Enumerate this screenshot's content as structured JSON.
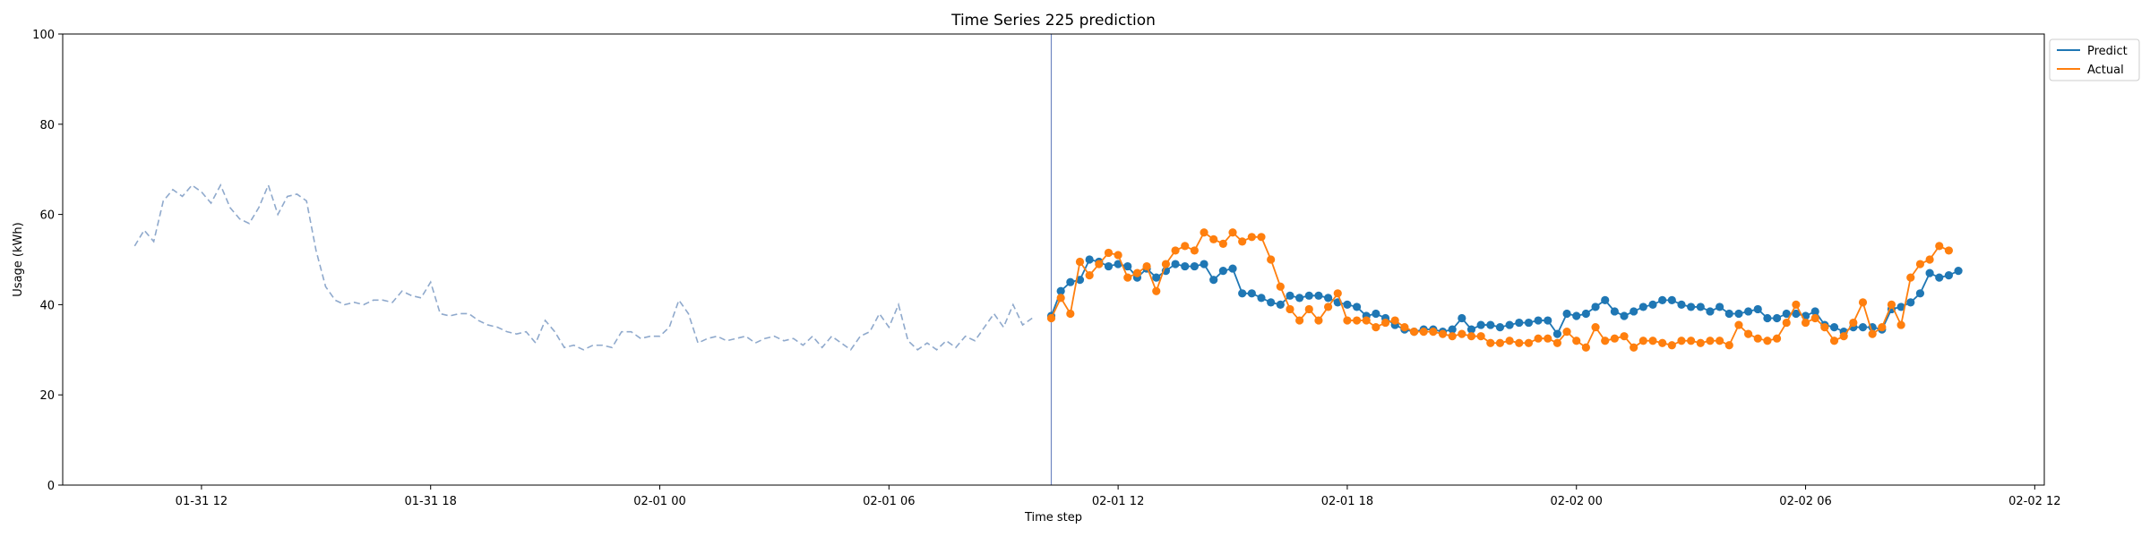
{
  "chart_data": {
    "type": "line",
    "title": "Time Series 225 prediction",
    "xlabel": "Time step",
    "ylabel": "Usage (kWh)",
    "ylim": [
      0,
      100
    ],
    "xlim": [
      "2024-01-31T08:22",
      "2024-02-02T12:15"
    ],
    "x_ticks": [
      {
        "t": "2024-01-31T12:00",
        "label": "01-31 12"
      },
      {
        "t": "2024-01-31T18:00",
        "label": "01-31 18"
      },
      {
        "t": "2024-02-01T00:00",
        "label": "02-01 00"
      },
      {
        "t": "2024-02-01T06:00",
        "label": "02-01 06"
      },
      {
        "t": "2024-02-01T12:00",
        "label": "02-01 12"
      },
      {
        "t": "2024-02-01T18:00",
        "label": "02-01 18"
      },
      {
        "t": "2024-02-02T00:00",
        "label": "02-02 00"
      },
      {
        "t": "2024-02-02T06:00",
        "label": "02-02 06"
      },
      {
        "t": "2024-02-02T12:00",
        "label": "02-02 12"
      }
    ],
    "y_ticks": [
      0,
      20,
      40,
      60,
      80,
      100
    ],
    "forecast_start": "2024-02-01T10:15",
    "grid": false,
    "legend_position": "top-right, outside plot",
    "history": {
      "name": "",
      "color": "#8fa9cc",
      "style": "dashed",
      "start": "2024-01-31T10:15",
      "interval_minutes": 15,
      "values": [
        53,
        56.5,
        54,
        63,
        65.5,
        64,
        66.5,
        65,
        62.5,
        66.5,
        61.5,
        59,
        58,
        61.5,
        66.5,
        60,
        64,
        64.5,
        63,
        52,
        44,
        41,
        40,
        40.5,
        40,
        41,
        41,
        40.5,
        43,
        42,
        41.5,
        45,
        38,
        37.5,
        38,
        38,
        36.5,
        35.5,
        35,
        34,
        33.5,
        34,
        31.5,
        36.5,
        34,
        30.5,
        31,
        30,
        31,
        31,
        30.5,
        34,
        34,
        32.5,
        33,
        33,
        35,
        41,
        38,
        31.5,
        32.5,
        33,
        32,
        32.5,
        33,
        31.5,
        32.5,
        33,
        32,
        32.5,
        31,
        33,
        30.5,
        33,
        31.5,
        30,
        33,
        34,
        38,
        35,
        40,
        32,
        30,
        31.5,
        30,
        32,
        30.5,
        33,
        32,
        35,
        38,
        35,
        40,
        35.5,
        37
      ]
    },
    "series": [
      {
        "name": "Predict",
        "color": "#1f77b4",
        "start": "2024-02-01T10:15",
        "interval_minutes": 15,
        "values": [
          37.5,
          43,
          45,
          45.5,
          50,
          49.5,
          48.5,
          49,
          48.5,
          46,
          48,
          46,
          47.5,
          49,
          48.5,
          48.5,
          49,
          45.5,
          47.5,
          48,
          42.5,
          42.5,
          41.5,
          40.5,
          40,
          42,
          41.5,
          42,
          42,
          41.5,
          40.5,
          40,
          39.5,
          37.5,
          38,
          37,
          35.5,
          34.5,
          34,
          34.5,
          34.5,
          34,
          34.5,
          37,
          34.5,
          35.5,
          35.5,
          35,
          35.5,
          36,
          36,
          36.5,
          36.5,
          33.5,
          38,
          37.5,
          38,
          39.5,
          41,
          38.5,
          37.5,
          38.5,
          39.5,
          40,
          41,
          41,
          40,
          39.5,
          39.5,
          38.5,
          39.5,
          38,
          38,
          38.5,
          39,
          37,
          37,
          38,
          38,
          37.5,
          38.5,
          35.5,
          35,
          34,
          35,
          35,
          35,
          34.5,
          39,
          39.5,
          40.5,
          42.5,
          47,
          46,
          46.5,
          47.5
        ]
      },
      {
        "name": "Actual",
        "color": "#ff7f0e",
        "start": "2024-02-01T10:15",
        "interval_minutes": 15,
        "values": [
          37,
          41.5,
          38,
          49.5,
          46.5,
          49,
          51.5,
          51,
          46,
          47,
          48.5,
          43,
          49,
          52,
          53,
          52,
          56,
          54.5,
          53.5,
          56,
          54,
          55,
          55,
          50,
          44,
          39,
          36.5,
          39,
          36.5,
          39.5,
          42.5,
          36.5,
          36.5,
          36.5,
          35,
          36,
          36.5,
          35,
          34,
          34,
          34,
          33.5,
          33,
          33.5,
          33,
          33,
          31.5,
          31.5,
          32,
          31.5,
          31.5,
          32.5,
          32.5,
          31.5,
          34,
          32,
          30.5,
          35,
          32,
          32.5,
          33,
          30.5,
          32,
          32,
          31.5,
          31,
          32,
          32,
          31.5,
          32,
          32,
          31,
          35.5,
          33.5,
          32.5,
          32,
          32.5,
          36,
          40,
          36,
          37,
          35,
          32,
          33,
          36,
          40.5,
          33.5,
          35,
          40,
          35.5,
          46,
          49,
          50,
          53,
          52
        ]
      }
    ]
  }
}
